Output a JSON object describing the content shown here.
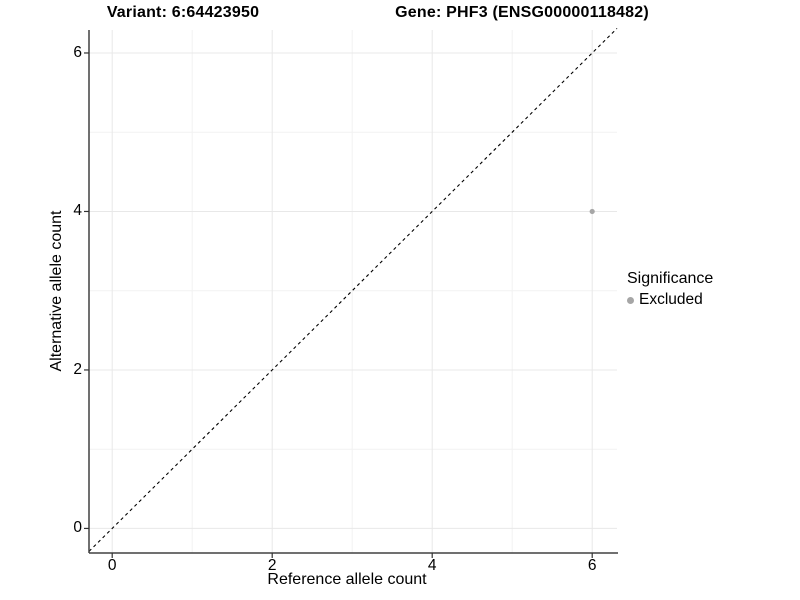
{
  "figure": {
    "title_left": "Variant: 6:64423950",
    "title_right": "Gene: PHF3 (ENSG00000118482)"
  },
  "chart_data": {
    "type": "scatter",
    "title": "Variant: 6:64423950    Gene: PHF3 (ENSG00000118482)",
    "xlabel": "Reference allele count",
    "ylabel": "Alternative allele count",
    "xlim": [
      -0.29,
      6.31
    ],
    "ylim": [
      -0.31,
      6.29
    ],
    "xticks": [
      0,
      2,
      4,
      6
    ],
    "yticks": [
      0,
      2,
      4,
      6
    ],
    "minor_xticks": [
      1,
      3,
      5
    ],
    "minor_yticks": [
      1,
      3,
      5
    ],
    "grid": true,
    "points": [
      {
        "x": 6,
        "y": 4,
        "series": "Excluded"
      }
    ],
    "reference_line": {
      "slope": 1,
      "intercept": 0,
      "style": "dashed"
    },
    "legend": {
      "title": "Significance",
      "position": "right",
      "items": [
        {
          "label": "Excluded",
          "color": "#a6a6a6"
        }
      ]
    },
    "colors": {
      "point": "#a6a6a6",
      "reference_line": "#000000",
      "grid_major": "#e8e8e8",
      "grid_minor": "#f2f2f2",
      "axis_line": "#404040",
      "tick_mark": "#333333",
      "text": "#000000"
    }
  }
}
